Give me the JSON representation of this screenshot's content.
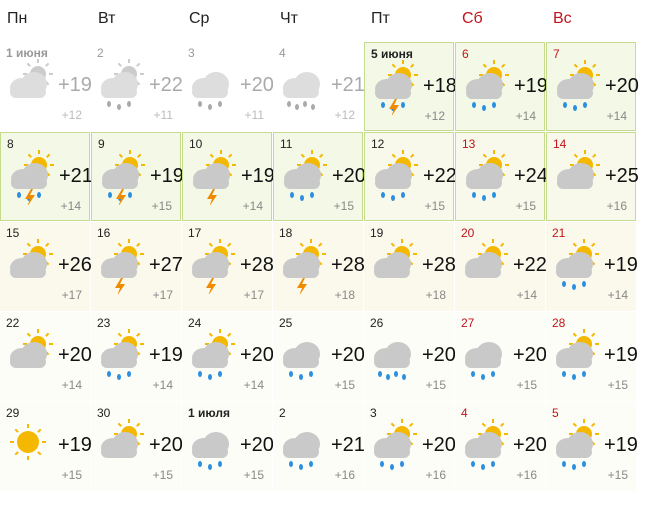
{
  "weekdays": [
    "Пн",
    "Вт",
    "Ср",
    "Чт",
    "Пт",
    "Сб",
    "Вс"
  ],
  "weeks": [
    [
      {
        "day": "1 июня",
        "high": "+19",
        "low": "+12"
      },
      {
        "day": "2",
        "high": "+22",
        "low": "+11"
      },
      {
        "day": "3",
        "high": "+20",
        "low": "+11"
      },
      {
        "day": "4",
        "high": "+21",
        "low": "+12"
      },
      {
        "day": "5 июня",
        "high": "+18",
        "low": "+12"
      },
      {
        "day": "6",
        "high": "+19",
        "low": "+14"
      },
      {
        "day": "7",
        "high": "+20",
        "low": "+14"
      }
    ],
    [
      {
        "day": "8",
        "high": "+21",
        "low": "+14"
      },
      {
        "day": "9",
        "high": "+19",
        "low": "+15"
      },
      {
        "day": "10",
        "high": "+19",
        "low": "+14"
      },
      {
        "day": "11",
        "high": "+20",
        "low": "+15"
      },
      {
        "day": "12",
        "high": "+22",
        "low": "+15"
      },
      {
        "day": "13",
        "high": "+24",
        "low": "+15"
      },
      {
        "day": "14",
        "high": "+25",
        "low": "+16"
      }
    ],
    [
      {
        "day": "15",
        "high": "+26",
        "low": "+17"
      },
      {
        "day": "16",
        "high": "+27",
        "low": "+17"
      },
      {
        "day": "17",
        "high": "+28",
        "low": "+17"
      },
      {
        "day": "18",
        "high": "+28",
        "low": "+18"
      },
      {
        "day": "19",
        "high": "+28",
        "low": "+18"
      },
      {
        "day": "20",
        "high": "+22",
        "low": "+14"
      },
      {
        "day": "21",
        "high": "+19",
        "low": "+14"
      }
    ],
    [
      {
        "day": "22",
        "high": "+20",
        "low": "+14"
      },
      {
        "day": "23",
        "high": "+19",
        "low": "+14"
      },
      {
        "day": "24",
        "high": "+20",
        "low": "+14"
      },
      {
        "day": "25",
        "high": "+20",
        "low": "+15"
      },
      {
        "day": "26",
        "high": "+20",
        "low": "+15"
      },
      {
        "day": "27",
        "high": "+20",
        "low": "+15"
      },
      {
        "day": "28",
        "high": "+19",
        "low": "+15"
      }
    ],
    [
      {
        "day": "29",
        "high": "+19",
        "low": "+15"
      },
      {
        "day": "30",
        "high": "+20",
        "low": "+15"
      },
      {
        "day": "1 июля",
        "high": "+20",
        "low": "+15"
      },
      {
        "day": "2",
        "high": "+21",
        "low": "+16"
      },
      {
        "day": "3",
        "high": "+20",
        "low": "+16"
      },
      {
        "day": "4",
        "high": "+20",
        "low": "+16"
      },
      {
        "day": "5",
        "high": "+19",
        "low": "+15"
      }
    ]
  ]
}
